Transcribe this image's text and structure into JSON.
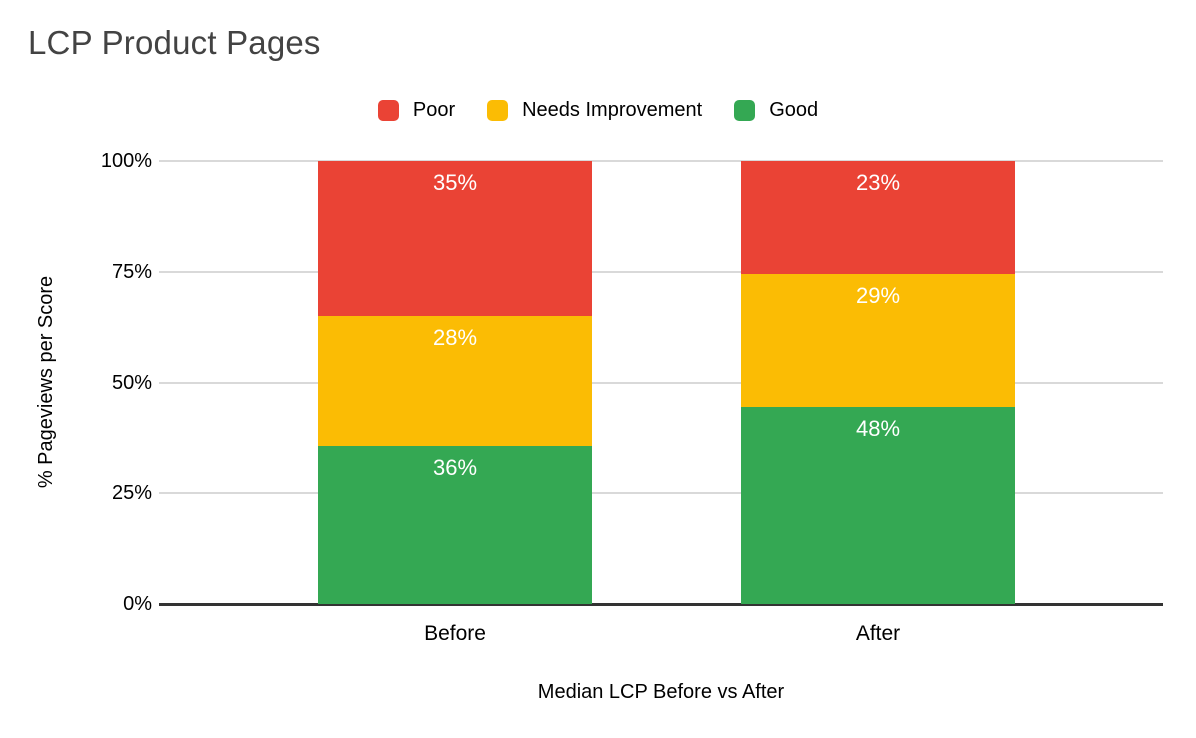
{
  "title": "LCP Product Pages",
  "legend": {
    "items": [
      {
        "label": "Poor",
        "color": "#EA4335"
      },
      {
        "label": "Needs Improvement",
        "color": "#FBBC04"
      },
      {
        "label": "Good",
        "color": "#34A853"
      }
    ]
  },
  "colors": {
    "poor": "#EA4335",
    "needs_improvement": "#FBBC04",
    "good": "#34A853",
    "gridline": "#D9D9D9",
    "axis_line": "#333333",
    "title_text": "#434343",
    "data_label_text": "#FFFFFF"
  },
  "chart_data": {
    "type": "bar",
    "stacked": true,
    "percent_stacked": true,
    "title": "LCP Product Pages",
    "xlabel": "Median LCP Before vs After",
    "ylabel": "% Pageviews per Score",
    "categories": [
      "Before",
      "After"
    ],
    "series": [
      {
        "name": "Poor",
        "color": "#EA4335",
        "values": [
          35,
          23
        ],
        "labels": [
          "35%",
          "23%"
        ]
      },
      {
        "name": "Needs Improvement",
        "color": "#FBBC04",
        "values": [
          28,
          29
        ],
        "labels": [
          "28%",
          "29%"
        ]
      },
      {
        "name": "Good",
        "color": "#34A853",
        "values": [
          36,
          48
        ],
        "labels": [
          "36%",
          "48%"
        ]
      }
    ],
    "stack_order_top_to_bottom": [
      "Poor",
      "Needs Improvement",
      "Good"
    ],
    "yticks": [
      {
        "value": 0,
        "label": "0%"
      },
      {
        "value": 25,
        "label": "25%"
      },
      {
        "value": 50,
        "label": "50%"
      },
      {
        "value": 75,
        "label": "75%"
      },
      {
        "value": 100,
        "label": "100%"
      }
    ],
    "ylim": [
      0,
      100
    ],
    "grid": true,
    "legend_position": "top"
  }
}
